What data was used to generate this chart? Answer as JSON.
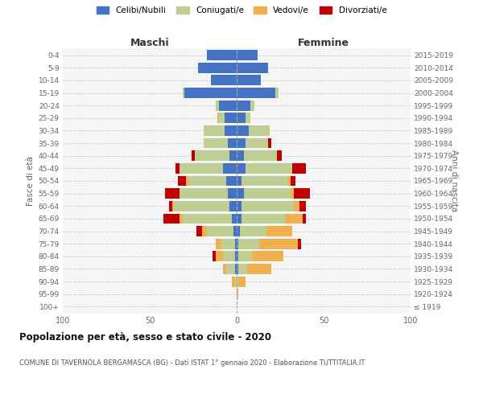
{
  "age_groups": [
    "100+",
    "95-99",
    "90-94",
    "85-89",
    "80-84",
    "75-79",
    "70-74",
    "65-69",
    "60-64",
    "55-59",
    "50-54",
    "45-49",
    "40-44",
    "35-39",
    "30-34",
    "25-29",
    "20-24",
    "15-19",
    "10-14",
    "5-9",
    "0-4"
  ],
  "birth_years": [
    "≤ 1919",
    "1920-1924",
    "1925-1929",
    "1930-1934",
    "1935-1939",
    "1940-1944",
    "1945-1949",
    "1950-1954",
    "1955-1959",
    "1960-1964",
    "1965-1969",
    "1970-1974",
    "1975-1979",
    "1980-1984",
    "1985-1989",
    "1990-1994",
    "1995-1999",
    "2000-2004",
    "2005-2009",
    "2010-2014",
    "2015-2019"
  ],
  "maschi": {
    "celibi": [
      0,
      0,
      0,
      1,
      1,
      1,
      2,
      3,
      4,
      5,
      6,
      8,
      4,
      5,
      7,
      7,
      10,
      30,
      15,
      22,
      17
    ],
    "coniugati": [
      0,
      0,
      1,
      5,
      7,
      8,
      15,
      28,
      32,
      28,
      22,
      25,
      20,
      14,
      12,
      3,
      2,
      1,
      0,
      0,
      0
    ],
    "vedovi": [
      0,
      0,
      2,
      2,
      4,
      3,
      3,
      2,
      1,
      0,
      1,
      0,
      0,
      0,
      0,
      1,
      0,
      0,
      0,
      0,
      0
    ],
    "divorziati": [
      0,
      0,
      0,
      0,
      2,
      0,
      3,
      9,
      2,
      8,
      5,
      2,
      2,
      0,
      0,
      0,
      0,
      0,
      0,
      0,
      0
    ]
  },
  "femmine": {
    "nubili": [
      0,
      0,
      0,
      1,
      1,
      1,
      2,
      3,
      3,
      4,
      3,
      5,
      4,
      5,
      7,
      5,
      8,
      22,
      14,
      18,
      12
    ],
    "coniugate": [
      0,
      0,
      1,
      5,
      8,
      12,
      15,
      25,
      30,
      27,
      26,
      27,
      19,
      13,
      12,
      3,
      2,
      2,
      0,
      0,
      0
    ],
    "vedove": [
      0,
      1,
      4,
      14,
      18,
      22,
      15,
      10,
      3,
      2,
      2,
      0,
      0,
      0,
      0,
      0,
      0,
      0,
      0,
      0,
      0
    ],
    "divorziate": [
      0,
      0,
      0,
      0,
      0,
      2,
      0,
      2,
      4,
      9,
      3,
      8,
      3,
      2,
      0,
      0,
      0,
      0,
      0,
      0,
      0
    ]
  },
  "colors": {
    "celibi_nubili": "#4472C4",
    "coniugati_e": "#BFCE93",
    "vedovi_e": "#F0B050",
    "divorziati_e": "#C00000"
  },
  "xlim": 100,
  "title": "Popolazione per età, sesso e stato civile - 2020",
  "subtitle": "COMUNE DI TAVERNOLA BERGAMASCA (BG) - Dati ISTAT 1° gennaio 2020 - Elaborazione TUTTITALIA.IT",
  "ylabel_left": "Fasce di età",
  "ylabel_right": "Anni di nascita",
  "xlabel_left": "Maschi",
  "xlabel_right": "Femmine",
  "legend_labels": [
    "Celibi/Nubili",
    "Coniugati/e",
    "Vedovi/e",
    "Divorziati/e"
  ],
  "bg_color": "#ffffff"
}
